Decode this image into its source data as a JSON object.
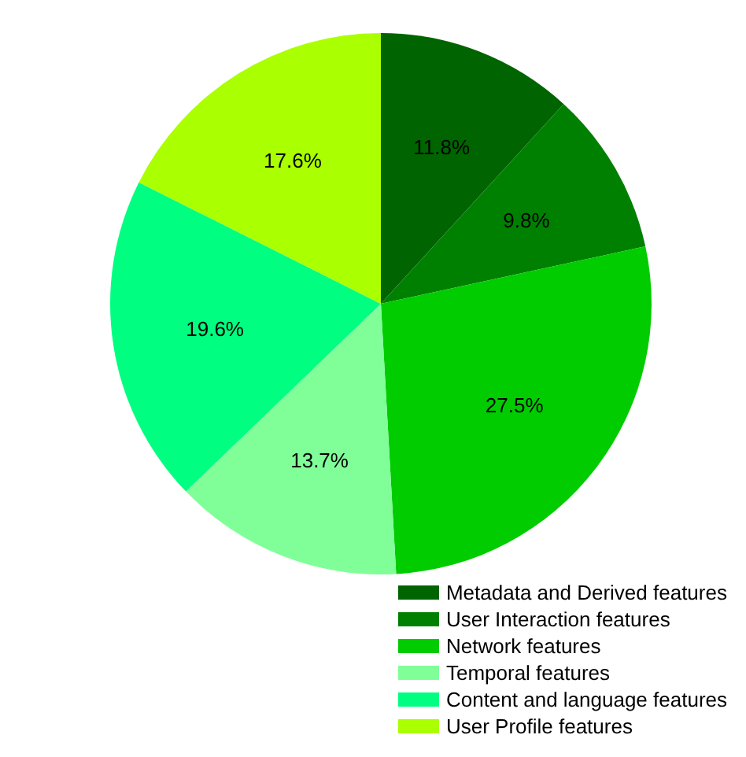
{
  "chart_data": {
    "type": "pie",
    "categories": [
      "Metadata and Derived features",
      "User Interaction features",
      "Network features",
      "Temporal features",
      "Content and language features",
      "User Profile features"
    ],
    "values": [
      11.8,
      9.8,
      27.5,
      13.7,
      19.6,
      17.6
    ],
    "colors": [
      "#006400",
      "#008000",
      "#00cc00",
      "#80ff99",
      "#00ff80",
      "#aaff00"
    ],
    "value_labels": [
      "11.8%",
      "9.8%",
      "27.5%",
      "13.7%",
      "19.6%",
      "17.6%"
    ],
    "legend": "bottom right"
  }
}
